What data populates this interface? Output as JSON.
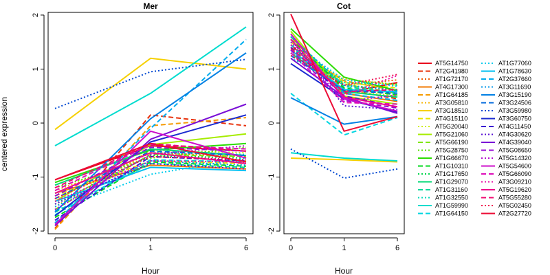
{
  "ylabel": "centered expression",
  "legend_position": "right",
  "genes": [
    {
      "name": "AT5G14750",
      "color": "#e8001b",
      "dash": "solid"
    },
    {
      "name": "AT2G41980",
      "color": "#e8300a",
      "dash": "dashed"
    },
    {
      "name": "AT1G72170",
      "color": "#ef5a00",
      "dash": "dotted"
    },
    {
      "name": "AT4G17300",
      "color": "#f27a00",
      "dash": "solid"
    },
    {
      "name": "AT1G64185",
      "color": "#f59a00",
      "dash": "dashed"
    },
    {
      "name": "AT3G05810",
      "color": "#f7b400",
      "dash": "dotted"
    },
    {
      "name": "AT3G18510",
      "color": "#f6d000",
      "dash": "solid"
    },
    {
      "name": "AT4G15110",
      "color": "#e9e600",
      "dash": "dashed"
    },
    {
      "name": "AT5G20040",
      "color": "#cfee00",
      "dash": "dotted"
    },
    {
      "name": "AT5G21060",
      "color": "#a6ec00",
      "dash": "solid"
    },
    {
      "name": "AT5G66190",
      "color": "#7fe600",
      "dash": "dashed"
    },
    {
      "name": "AT5G28750",
      "color": "#55e000",
      "dash": "dotted"
    },
    {
      "name": "AT1G66670",
      "color": "#2bdc00",
      "dash": "solid"
    },
    {
      "name": "AT1G10310",
      "color": "#00d81c",
      "dash": "dashed"
    },
    {
      "name": "AT1G17650",
      "color": "#00d64a",
      "dash": "dotted"
    },
    {
      "name": "AT1G29070",
      "color": "#00d876",
      "dash": "solid"
    },
    {
      "name": "AT1G31160",
      "color": "#00d89a",
      "dash": "dashed"
    },
    {
      "name": "AT1G32550",
      "color": "#00dab8",
      "dash": "dotted"
    },
    {
      "name": "AT1G59990",
      "color": "#00dcce",
      "dash": "solid"
    },
    {
      "name": "AT1G64150",
      "color": "#00d6e0",
      "dash": "dashed"
    },
    {
      "name": "AT1G77060",
      "color": "#00ccec",
      "dash": "dotted"
    },
    {
      "name": "AT1G78630",
      "color": "#00bff0",
      "dash": "solid"
    },
    {
      "name": "AT2G37660",
      "color": "#00acee",
      "dash": "dashed"
    },
    {
      "name": "AT3G11690",
      "color": "#0096ea",
      "dash": "dotted"
    },
    {
      "name": "AT3G15190",
      "color": "#0080e4",
      "dash": "solid"
    },
    {
      "name": "AT3G24506",
      "color": "#0068dc",
      "dash": "dashed"
    },
    {
      "name": "AT3G59980",
      "color": "#0048d2",
      "dash": "dotted"
    },
    {
      "name": "AT3G60750",
      "color": "#1a2ad0",
      "dash": "solid"
    },
    {
      "name": "AT4G11450",
      "color": "#3a1ad2",
      "dash": "dashed"
    },
    {
      "name": "AT4G30620",
      "color": "#5a12d4",
      "dash": "dotted"
    },
    {
      "name": "AT4G39040",
      "color": "#7a0ed6",
      "dash": "solid"
    },
    {
      "name": "AT5G08650",
      "color": "#980cd6",
      "dash": "dashed"
    },
    {
      "name": "AT5G14320",
      "color": "#b40cd2",
      "dash": "dotted"
    },
    {
      "name": "AT5G54600",
      "color": "#cc0cca",
      "dash": "solid"
    },
    {
      "name": "AT5G66090",
      "color": "#de0cba",
      "dash": "dashed"
    },
    {
      "name": "AT3G09210",
      "color": "#e80aa6",
      "dash": "dotted"
    },
    {
      "name": "AT5G19620",
      "color": "#ee0a8c",
      "dash": "solid"
    },
    {
      "name": "AT5G55280",
      "color": "#f00a70",
      "dash": "dashed"
    },
    {
      "name": "AT5G02450",
      "color": "#f00c52",
      "dash": "dotted"
    },
    {
      "name": "AT2G27720",
      "color": "#ec0c36",
      "dash": "solid"
    }
  ],
  "chart_data": [
    {
      "type": "line",
      "title": "Mer",
      "xlabel": "Hour",
      "ylabel": "centered expression",
      "x": [
        0,
        1,
        6
      ],
      "x_tick_labels": [
        "0",
        "1",
        "6"
      ],
      "ylim": [
        -2.05,
        2.05
      ],
      "y_ticks": [
        -2,
        -1,
        0,
        1,
        2
      ],
      "grid": false,
      "series": [
        {
          "name": "AT5G14750",
          "values": [
            -1.05,
            -0.42,
            -0.52
          ]
        },
        {
          "name": "AT2G41980",
          "values": [
            -1.95,
            0.15,
            -0.05
          ]
        },
        {
          "name": "AT1G72170",
          "values": [
            -1.4,
            -0.55,
            -0.62
          ]
        },
        {
          "name": "AT4G17300",
          "values": [
            -1.3,
            -0.78,
            -0.85
          ]
        },
        {
          "name": "AT1G64185",
          "values": [
            -1.97,
            -0.05,
            0.1
          ]
        },
        {
          "name": "AT3G05810",
          "values": [
            -1.25,
            -0.62,
            -0.7
          ]
        },
        {
          "name": "AT3G18510",
          "values": [
            -0.12,
            1.2,
            1.0
          ]
        },
        {
          "name": "AT4G15110",
          "values": [
            -1.35,
            -0.7,
            -0.75
          ]
        },
        {
          "name": "AT5G20040",
          "values": [
            -1.55,
            -0.5,
            -0.55
          ]
        },
        {
          "name": "AT5G21060",
          "values": [
            -1.45,
            -0.4,
            -0.2
          ]
        },
        {
          "name": "AT5G66190",
          "values": [
            -1.6,
            -0.58,
            -0.62
          ]
        },
        {
          "name": "AT5G28750",
          "values": [
            -1.2,
            -0.65,
            -0.45
          ]
        },
        {
          "name": "AT1G66670",
          "values": [
            -1.1,
            -0.5,
            -0.38
          ]
        },
        {
          "name": "AT1G10310",
          "values": [
            -1.75,
            -0.72,
            -0.8
          ]
        },
        {
          "name": "AT1G17650",
          "values": [
            -1.5,
            -0.6,
            -0.65
          ]
        },
        {
          "name": "AT1G29070",
          "values": [
            -1.15,
            -0.48,
            -0.6
          ]
        },
        {
          "name": "AT1G31160",
          "values": [
            -1.65,
            -0.75,
            -0.82
          ]
        },
        {
          "name": "AT1G32550",
          "values": [
            -1.3,
            -0.55,
            -0.58
          ]
        },
        {
          "name": "AT1G59990",
          "values": [
            -0.42,
            0.55,
            1.78
          ]
        },
        {
          "name": "AT1G64150",
          "values": [
            -1.7,
            -0.68,
            -0.72
          ]
        },
        {
          "name": "AT1G77060",
          "values": [
            -1.62,
            -0.95,
            -0.65
          ]
        },
        {
          "name": "AT1G78630",
          "values": [
            -1.45,
            -0.82,
            -0.88
          ]
        },
        {
          "name": "AT2G37660",
          "values": [
            -1.85,
            -0.1,
            1.55
          ]
        },
        {
          "name": "AT3G11690",
          "values": [
            -1.55,
            -0.7,
            -0.78
          ]
        },
        {
          "name": "AT3G15190",
          "values": [
            -1.65,
            0.08,
            1.3
          ]
        },
        {
          "name": "AT3G24506",
          "values": [
            -1.4,
            -0.52,
            -0.6
          ]
        },
        {
          "name": "AT3G59980",
          "values": [
            0.27,
            0.95,
            1.18
          ]
        },
        {
          "name": "AT3G60750",
          "values": [
            -1.72,
            -0.35,
            0.15
          ]
        },
        {
          "name": "AT4G11450",
          "values": [
            -1.8,
            -0.62,
            -0.7
          ]
        },
        {
          "name": "AT4G30620",
          "values": [
            -1.5,
            -0.75,
            -0.85
          ]
        },
        {
          "name": "AT4G39040",
          "values": [
            -1.9,
            -0.3,
            0.35
          ]
        },
        {
          "name": "AT5G08650",
          "values": [
            -1.35,
            -0.45,
            -0.52
          ]
        },
        {
          "name": "AT5G14320",
          "values": [
            -1.6,
            -0.58,
            -0.42
          ]
        },
        {
          "name": "AT5G54600",
          "values": [
            -1.88,
            -0.15,
            -0.65
          ]
        },
        {
          "name": "AT5G66090",
          "values": [
            -1.25,
            -0.4,
            -0.48
          ]
        },
        {
          "name": "AT3G09210",
          "values": [
            -1.45,
            -0.7,
            -0.72
          ]
        },
        {
          "name": "AT5G19620",
          "values": [
            -1.3,
            -0.55,
            -0.75
          ]
        },
        {
          "name": "AT5G55280",
          "values": [
            -1.2,
            -0.38,
            -0.52
          ]
        },
        {
          "name": "AT5G02450",
          "values": [
            -1.4,
            -0.62,
            -0.68
          ]
        },
        {
          "name": "AT2G27720",
          "values": [
            -1.05,
            -0.38,
            -0.72
          ]
        }
      ]
    },
    {
      "type": "line",
      "title": "Cot",
      "xlabel": "Hour",
      "x": [
        0,
        1,
        6
      ],
      "x_tick_labels": [
        "0",
        "1",
        "6"
      ],
      "ylim": [
        -2.05,
        2.05
      ],
      "y_ticks": [
        -2,
        -1,
        0,
        1,
        2
      ],
      "grid": false,
      "series": [
        {
          "name": "AT5G14750",
          "values": [
            1.45,
            0.55,
            0.75
          ]
        },
        {
          "name": "AT2G41980",
          "values": [
            1.55,
            0.62,
            0.45
          ]
        },
        {
          "name": "AT1G72170",
          "values": [
            1.3,
            0.7,
            0.8
          ]
        },
        {
          "name": "AT4G17300",
          "values": [
            1.6,
            0.55,
            0.4
          ]
        },
        {
          "name": "AT1G64185",
          "values": [
            1.4,
            0.78,
            0.6
          ]
        },
        {
          "name": "AT3G05810",
          "values": [
            1.35,
            0.82,
            0.7
          ]
        },
        {
          "name": "AT3G18510",
          "values": [
            -0.65,
            -0.68,
            -0.72
          ]
        },
        {
          "name": "AT4G15110",
          "values": [
            1.5,
            0.75,
            0.65
          ]
        },
        {
          "name": "AT5G20040",
          "values": [
            1.65,
            0.6,
            0.5
          ]
        },
        {
          "name": "AT5G21060",
          "values": [
            1.7,
            0.5,
            0.35
          ]
        },
        {
          "name": "AT5G66190",
          "values": [
            1.45,
            0.72,
            0.55
          ]
        },
        {
          "name": "AT5G28750",
          "values": [
            1.25,
            0.8,
            0.72
          ]
        },
        {
          "name": "AT1G66670",
          "values": [
            1.75,
            0.85,
            0.6
          ]
        },
        {
          "name": "AT1G10310",
          "values": [
            1.55,
            0.65,
            0.52
          ]
        },
        {
          "name": "AT1G17650",
          "values": [
            1.4,
            0.7,
            0.62
          ]
        },
        {
          "name": "AT1G29070",
          "values": [
            1.3,
            0.58,
            0.48
          ]
        },
        {
          "name": "AT1G31160",
          "values": [
            1.6,
            0.68,
            0.55
          ]
        },
        {
          "name": "AT1G32550",
          "values": [
            1.2,
            0.75,
            0.7
          ]
        },
        {
          "name": "AT1G59990",
          "values": [
            -0.55,
            -0.65,
            -0.7
          ]
        },
        {
          "name": "AT1G64150",
          "values": [
            0.55,
            -0.22,
            0.1
          ]
        },
        {
          "name": "AT1G77060",
          "values": [
            1.5,
            0.8,
            0.68
          ]
        },
        {
          "name": "AT1G78630",
          "values": [
            1.35,
            0.62,
            0.58
          ]
        },
        {
          "name": "AT2G37660",
          "values": [
            1.45,
            0.55,
            0.42
          ]
        },
        {
          "name": "AT3G11690",
          "values": [
            1.6,
            0.7,
            0.6
          ]
        },
        {
          "name": "AT3G15190",
          "values": [
            0.47,
            -0.02,
            0.12
          ]
        },
        {
          "name": "AT3G24506",
          "values": [
            1.25,
            0.6,
            0.55
          ]
        },
        {
          "name": "AT3G59980",
          "values": [
            -0.48,
            -1.02,
            -0.85
          ]
        },
        {
          "name": "AT3G60750",
          "values": [
            1.1,
            0.45,
            0.2
          ]
        },
        {
          "name": "AT4G11450",
          "values": [
            1.4,
            0.5,
            0.3
          ]
        },
        {
          "name": "AT4G30620",
          "values": [
            1.55,
            0.32,
            0.25
          ]
        },
        {
          "name": "AT4G39040",
          "values": [
            1.2,
            0.48,
            0.18
          ]
        },
        {
          "name": "AT5G08650",
          "values": [
            1.35,
            0.42,
            0.28
          ]
        },
        {
          "name": "AT5G14320",
          "values": [
            1.5,
            0.4,
            0.52
          ]
        },
        {
          "name": "AT5G54600",
          "values": [
            1.65,
            0.45,
            0.22
          ]
        },
        {
          "name": "AT5G66090",
          "values": [
            1.3,
            0.38,
            0.35
          ]
        },
        {
          "name": "AT3G09210",
          "values": [
            1.45,
            0.52,
            0.88
          ]
        },
        {
          "name": "AT5G19620",
          "values": [
            1.55,
            0.48,
            0.3
          ]
        },
        {
          "name": "AT5G55280",
          "values": [
            1.38,
            0.58,
            0.62
          ]
        },
        {
          "name": "AT5G02450",
          "values": [
            1.25,
            0.7,
            0.9
          ]
        },
        {
          "name": "AT2G27720",
          "values": [
            2.02,
            -0.15,
            0.12
          ]
        }
      ]
    }
  ]
}
